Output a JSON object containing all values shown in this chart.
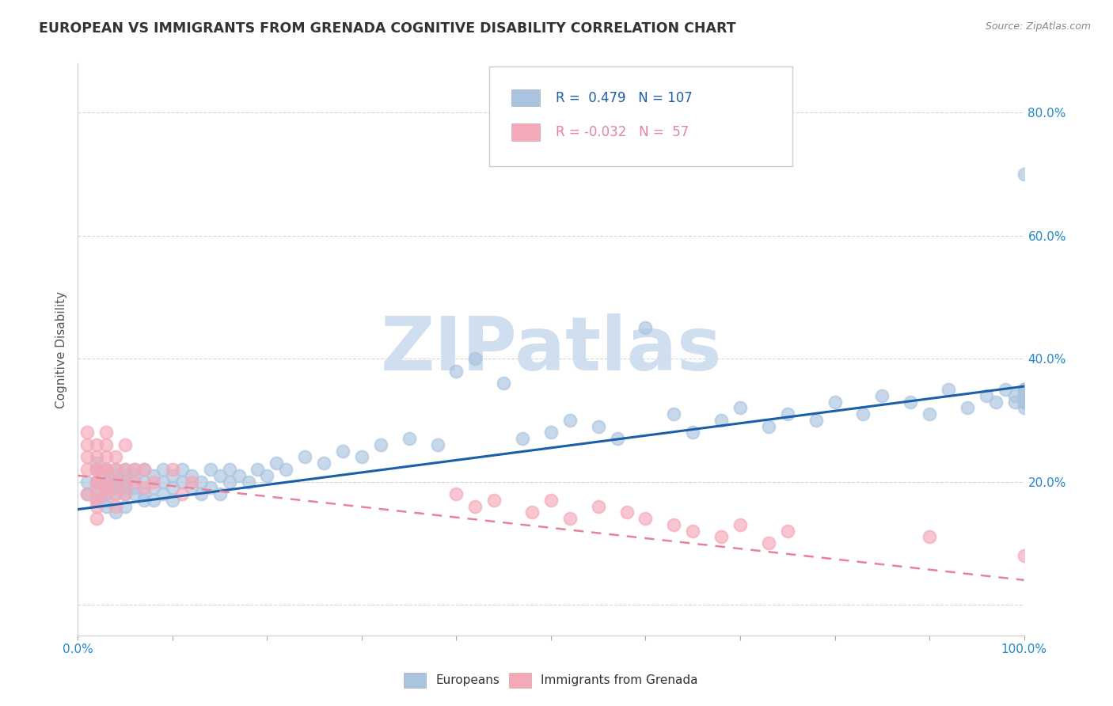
{
  "title": "EUROPEAN VS IMMIGRANTS FROM GRENADA COGNITIVE DISABILITY CORRELATION CHART",
  "source": "Source: ZipAtlas.com",
  "xlabel": "",
  "ylabel": "Cognitive Disability",
  "xlim": [
    0.0,
    1.0
  ],
  "ylim": [
    -0.05,
    0.88
  ],
  "xticks": [
    0.0,
    0.1,
    0.2,
    0.3,
    0.4,
    0.5,
    0.6,
    0.7,
    0.8,
    0.9,
    1.0
  ],
  "yticks": [
    0.0,
    0.2,
    0.4,
    0.6,
    0.8
  ],
  "ytick_labels": [
    "",
    "20.0%",
    "40.0%",
    "60.0%",
    "80.0%"
  ],
  "xtick_labels": [
    "0.0%",
    "",
    "",
    "",
    "",
    "",
    "",
    "",
    "",
    "",
    "100.0%"
  ],
  "blue_R": 0.479,
  "blue_N": 107,
  "pink_R": -0.032,
  "pink_N": 57,
  "blue_color": "#aac4e0",
  "pink_color": "#f4a8b8",
  "blue_line_color": "#1a5fa8",
  "pink_line_color": "#e8829a",
  "watermark": "ZIPatlas",
  "watermark_color": "#d0dff0",
  "legend_label_blue": "Europeans",
  "legend_label_pink": "Immigrants from Grenada",
  "blue_scatter_x": [
    0.01,
    0.01,
    0.02,
    0.02,
    0.02,
    0.02,
    0.02,
    0.03,
    0.03,
    0.03,
    0.03,
    0.03,
    0.03,
    0.03,
    0.04,
    0.04,
    0.04,
    0.04,
    0.04,
    0.04,
    0.05,
    0.05,
    0.05,
    0.05,
    0.05,
    0.05,
    0.06,
    0.06,
    0.06,
    0.06,
    0.07,
    0.07,
    0.07,
    0.07,
    0.08,
    0.08,
    0.08,
    0.09,
    0.09,
    0.09,
    0.1,
    0.1,
    0.1,
    0.11,
    0.11,
    0.12,
    0.12,
    0.13,
    0.13,
    0.14,
    0.14,
    0.15,
    0.15,
    0.16,
    0.16,
    0.17,
    0.18,
    0.19,
    0.2,
    0.21,
    0.22,
    0.24,
    0.26,
    0.28,
    0.3,
    0.32,
    0.35,
    0.38,
    0.4,
    0.42,
    0.45,
    0.47,
    0.5,
    0.52,
    0.55,
    0.57,
    0.6,
    0.63,
    0.65,
    0.68,
    0.7,
    0.73,
    0.75,
    0.78,
    0.8,
    0.83,
    0.85,
    0.88,
    0.9,
    0.92,
    0.94,
    0.96,
    0.97,
    0.98,
    0.99,
    0.99,
    1.0,
    1.0,
    1.0,
    1.0,
    1.0,
    1.0,
    1.0,
    1.0,
    1.0,
    1.0,
    1.0
  ],
  "blue_scatter_y": [
    0.2,
    0.18,
    0.19,
    0.22,
    0.17,
    0.2,
    0.23,
    0.18,
    0.21,
    0.19,
    0.22,
    0.16,
    0.2,
    0.17,
    0.19,
    0.21,
    0.18,
    0.22,
    0.15,
    0.2,
    0.18,
    0.21,
    0.19,
    0.22,
    0.16,
    0.2,
    0.18,
    0.21,
    0.19,
    0.22,
    0.17,
    0.2,
    0.18,
    0.22,
    0.19,
    0.21,
    0.17,
    0.2,
    0.18,
    0.22,
    0.19,
    0.21,
    0.17,
    0.2,
    0.22,
    0.19,
    0.21,
    0.18,
    0.2,
    0.22,
    0.19,
    0.21,
    0.18,
    0.2,
    0.22,
    0.21,
    0.2,
    0.22,
    0.21,
    0.23,
    0.22,
    0.24,
    0.23,
    0.25,
    0.24,
    0.26,
    0.27,
    0.26,
    0.38,
    0.4,
    0.36,
    0.27,
    0.28,
    0.3,
    0.29,
    0.27,
    0.45,
    0.31,
    0.28,
    0.3,
    0.32,
    0.29,
    0.31,
    0.3,
    0.33,
    0.31,
    0.34,
    0.33,
    0.31,
    0.35,
    0.32,
    0.34,
    0.33,
    0.35,
    0.33,
    0.34,
    0.33,
    0.34,
    0.32,
    0.35,
    0.34,
    0.33,
    0.35,
    0.33,
    0.35,
    0.34,
    0.7
  ],
  "pink_scatter_x": [
    0.01,
    0.01,
    0.01,
    0.01,
    0.01,
    0.02,
    0.02,
    0.02,
    0.02,
    0.02,
    0.02,
    0.02,
    0.02,
    0.02,
    0.02,
    0.03,
    0.03,
    0.03,
    0.03,
    0.03,
    0.03,
    0.03,
    0.03,
    0.04,
    0.04,
    0.04,
    0.04,
    0.04,
    0.05,
    0.05,
    0.05,
    0.05,
    0.06,
    0.06,
    0.07,
    0.07,
    0.08,
    0.1,
    0.11,
    0.12,
    0.4,
    0.42,
    0.44,
    0.48,
    0.5,
    0.52,
    0.55,
    0.58,
    0.6,
    0.63,
    0.65,
    0.68,
    0.7,
    0.73,
    0.75,
    0.9,
    1.0
  ],
  "pink_scatter_y": [
    0.26,
    0.22,
    0.28,
    0.18,
    0.24,
    0.2,
    0.16,
    0.22,
    0.18,
    0.24,
    0.26,
    0.14,
    0.2,
    0.22,
    0.17,
    0.19,
    0.24,
    0.22,
    0.26,
    0.2,
    0.28,
    0.18,
    0.22,
    0.2,
    0.24,
    0.18,
    0.22,
    0.16,
    0.2,
    0.22,
    0.18,
    0.26,
    0.2,
    0.22,
    0.19,
    0.22,
    0.2,
    0.22,
    0.18,
    0.2,
    0.18,
    0.16,
    0.17,
    0.15,
    0.17,
    0.14,
    0.16,
    0.15,
    0.14,
    0.13,
    0.12,
    0.11,
    0.13,
    0.1,
    0.12,
    0.11,
    0.08
  ],
  "blue_line_x0": 0.0,
  "blue_line_x1": 1.0,
  "blue_line_y0": 0.155,
  "blue_line_y1": 0.355,
  "pink_line_x0": 0.0,
  "pink_line_x1": 1.0,
  "pink_line_y0": 0.21,
  "pink_line_y1": 0.04,
  "background_color": "#ffffff",
  "grid_color": "#cccccc",
  "title_color": "#333333",
  "axis_label_color": "#555555",
  "tick_color": "#2288cc",
  "title_fontsize": 12.5,
  "axis_label_fontsize": 11
}
